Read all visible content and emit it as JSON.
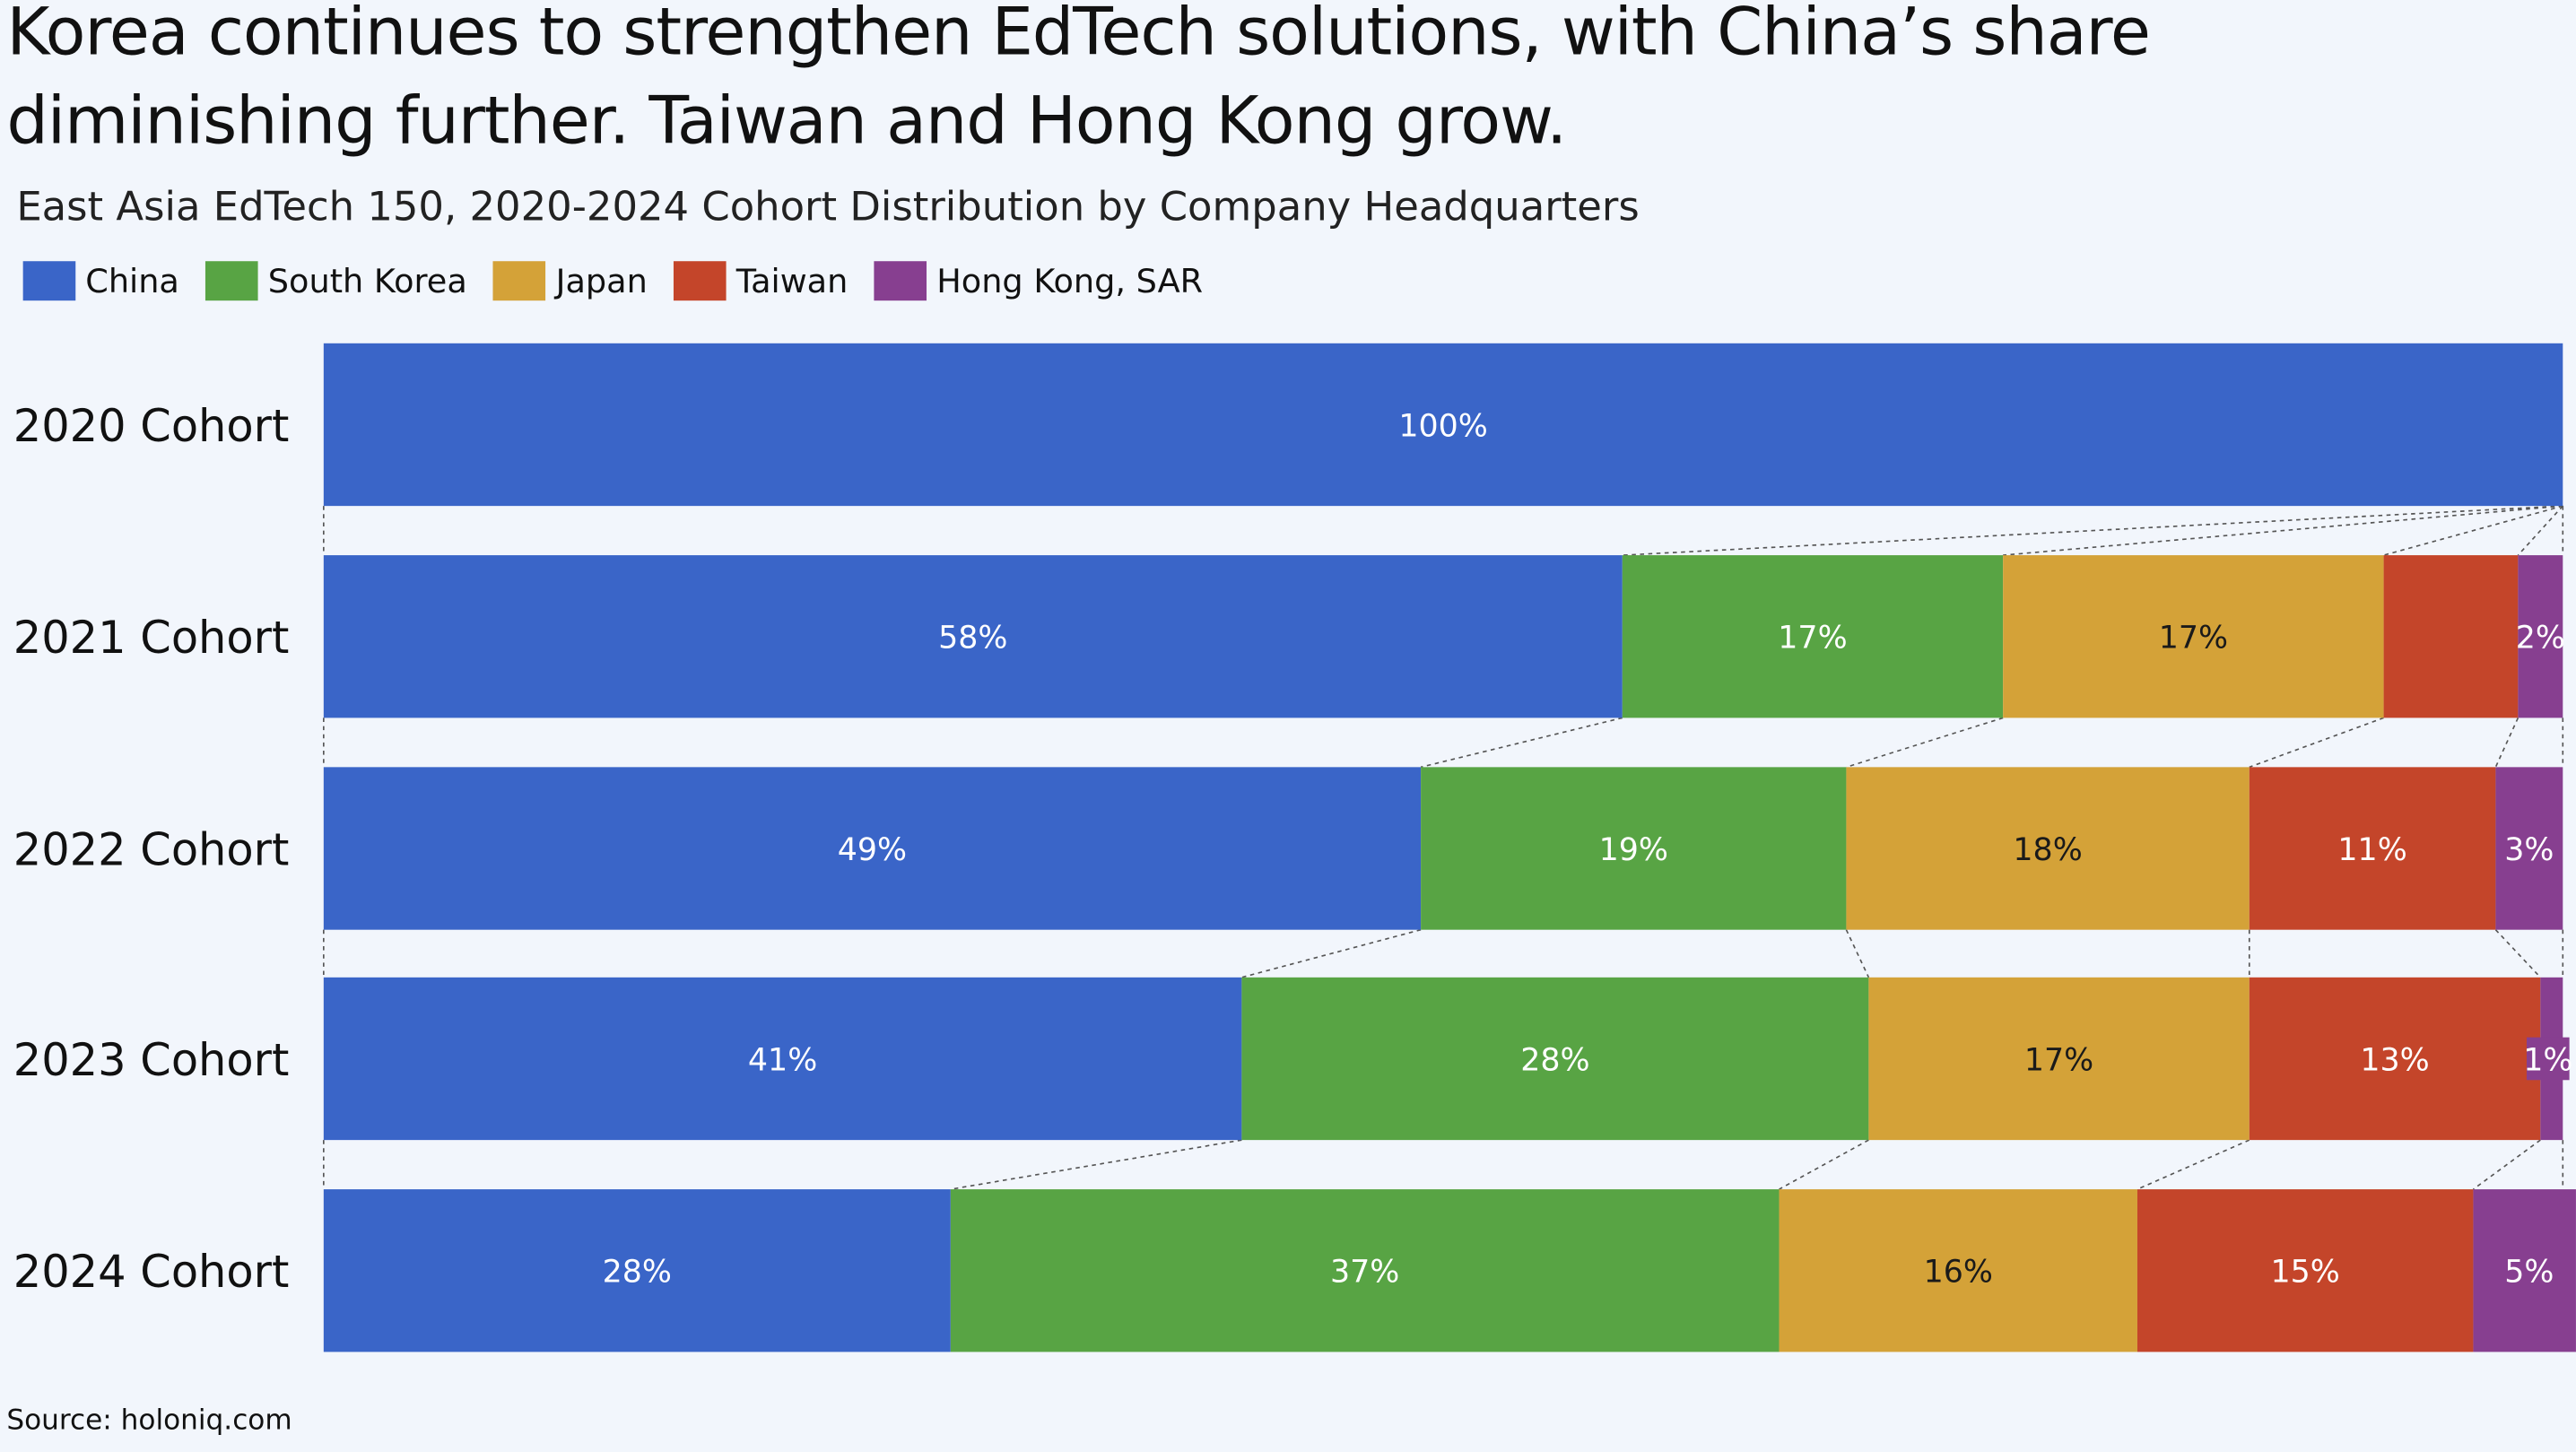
{
  "title_line_1": "Korea continues to strengthen EdTech solutions, with China’s share",
  "title_line_2": "diminishing further. Taiwan and Hong Kong grow.",
  "subtitle": "East Asia EdTech 150, 2020-2024 Cohort Distribution by Company Headquarters",
  "source": "Source: holoniq.com",
  "chart_data": {
    "type": "bar",
    "orientation": "horizontal",
    "stacked": "100%",
    "categories": [
      "2020 Cohort",
      "2021 Cohort",
      "2022 Cohort",
      "2023 Cohort",
      "2024 Cohort"
    ],
    "series": [
      {
        "name": "China",
        "color": "#3a65c8",
        "values": [
          100,
          58,
          49,
          41,
          28
        ],
        "labels": [
          "100%",
          "58%",
          "49%",
          "41%",
          "28%"
        ]
      },
      {
        "name": "South Korea",
        "color": "#58a444",
        "values": [
          0,
          17,
          19,
          28,
          37
        ],
        "labels": [
          "",
          "17%",
          "19%",
          "28%",
          "37%"
        ]
      },
      {
        "name": "Japan",
        "color": "#d4a238",
        "values": [
          0,
          17,
          18,
          17,
          16
        ],
        "labels": [
          "",
          "17%",
          "18%",
          "17%",
          "16%"
        ]
      },
      {
        "name": "Taiwan",
        "color": "#c4452a",
        "values": [
          0,
          6,
          11,
          13,
          15
        ],
        "labels": [
          "",
          "",
          "11%",
          "13%",
          "15%"
        ]
      },
      {
        "name": "Hong Kong, SAR",
        "color": "#873f90",
        "values": [
          0,
          2,
          3,
          1,
          5
        ],
        "labels": [
          "",
          "2%",
          "3%",
          "1%",
          "5%"
        ]
      }
    ],
    "xlim": [
      0,
      100
    ],
    "legend_position": "top-left",
    "grid": false,
    "connector_lines": true
  }
}
